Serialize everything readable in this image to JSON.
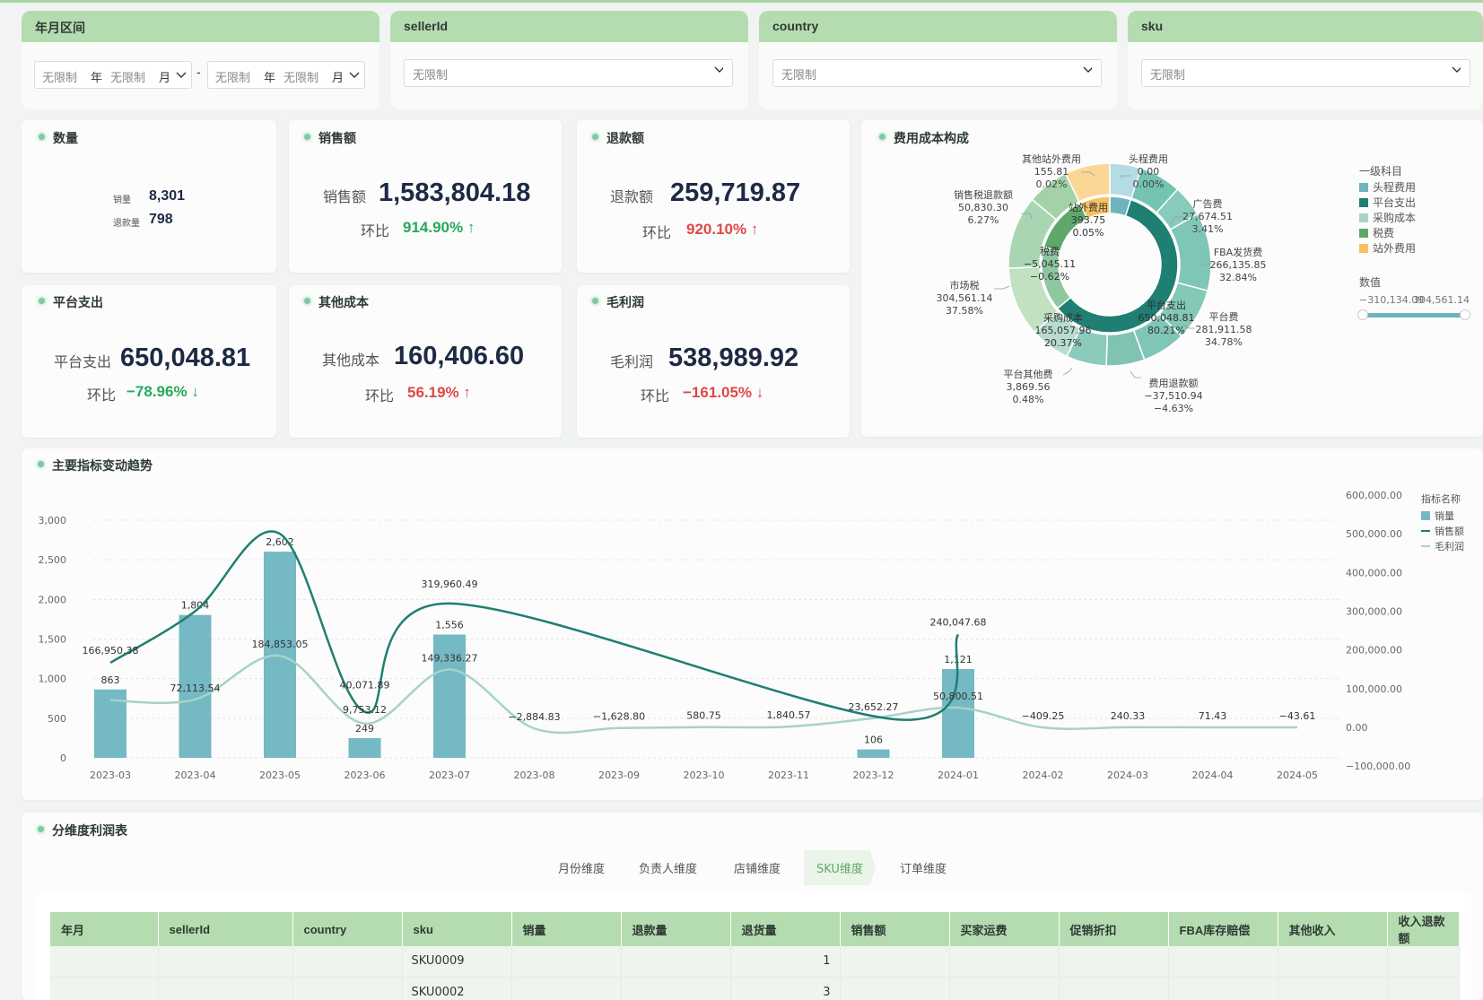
{
  "filters": {
    "year_month": {
      "title": "年月区间",
      "start_year": "无限制",
      "year_unit": "年",
      "start_month": "无限制",
      "month_unit": "月",
      "sep": "-",
      "end_year": "无限制",
      "end_month": "无限制"
    },
    "sellerId": {
      "title": "sellerId",
      "value": "无限制"
    },
    "country": {
      "title": "country",
      "value": "无限制"
    },
    "sku": {
      "title": "sku",
      "value": "无限制"
    }
  },
  "kpis": {
    "quantity": {
      "title": "数量",
      "sales_label": "销量",
      "sales_value": "8,301",
      "refund_label": "退款量",
      "refund_value": "798"
    },
    "sales": {
      "title": "销售额",
      "label": "销售额",
      "value": "1,583,804.18",
      "hb_label": "环比",
      "hb_value": "914.90%",
      "arrow": "↑"
    },
    "refund": {
      "title": "退款额",
      "label": "退款额",
      "value": "259,719.87",
      "hb_label": "环比",
      "hb_value": "920.10%",
      "arrow": "↑"
    },
    "platform": {
      "title": "平台支出",
      "label": "平台支出",
      "value": "650,048.81",
      "hb_label": "环比",
      "hb_value": "−78.96%",
      "arrow": "↓"
    },
    "other_cost": {
      "title": "其他成本",
      "label": "其他成本",
      "value": "160,406.60",
      "hb_label": "环比",
      "hb_value": "56.19%",
      "arrow": "↑"
    },
    "gross_profit": {
      "title": "毛利润",
      "label": "毛利润",
      "value": "538,989.92",
      "hb_label": "环比",
      "hb_value": "−161.05%",
      "arrow": "↓"
    }
  },
  "cost_chart": {
    "title": "费用成本构成",
    "legend_title": "一级科目",
    "legend": [
      "头程费用",
      "平台支出",
      "采购成本",
      "税费",
      "站外费用"
    ],
    "value_legend_title": "数值",
    "value_min": "−310,134.09",
    "value_max": "304,561.14",
    "colors": {
      "head": "#6fb3c0",
      "platform": "#1e7f72",
      "purchase": "#a8d4c0",
      "tax": "#5fa86a",
      "offsite": "#f6c160"
    }
  },
  "chart_data": [
    {
      "type": "pie",
      "title": "费用成本构成",
      "inner": [
        {
          "name": "头程费用",
          "value": 0.0,
          "label": ""
        },
        {
          "name": "平台支出",
          "value": 650048.81,
          "label": "平台支出\n650,048.81\n80.21%"
        },
        {
          "name": "采购成本",
          "value": 165057.96,
          "label": "采购成本\n165,057.96\n20.37%"
        },
        {
          "name": "税费",
          "value": -5045.11,
          "label": "税费\n−5,045.11\n−0.62%"
        },
        {
          "name": "站外费用",
          "value": 393.75,
          "label": "站外费用\n393.75\n0.05%"
        }
      ],
      "outer": [
        {
          "name": "头程费用",
          "value": "0.00",
          "pct": "0.00%"
        },
        {
          "name": "广告费",
          "value": "27,674.51",
          "pct": "3.41%"
        },
        {
          "name": "FBA发货费",
          "value": "266,135.85",
          "pct": "32.84%"
        },
        {
          "name": "平台费",
          "value": "281,911.58",
          "pct": "34.78%"
        },
        {
          "name": "费用退款额",
          "value": "−37,510.94",
          "pct": "−4.63%"
        },
        {
          "name": "平台其他费",
          "value": "3,869.56",
          "pct": "0.48%"
        },
        {
          "name": "市场税",
          "value": "304,561.14",
          "pct": "37.58%"
        },
        {
          "name": "销售税退款额",
          "value": "50,830.30",
          "pct": "6.27%"
        },
        {
          "name": "其他站外费用",
          "value": "155.81",
          "pct": "0.02%"
        }
      ]
    },
    {
      "type": "bar",
      "title": "主要指标变动趋势",
      "legend_title": "指标名称",
      "categories": [
        "2023-03",
        "2023-04",
        "2023-05",
        "2023-06",
        "2023-07",
        "2023-08",
        "2023-09",
        "2023-10",
        "2023-11",
        "2023-12",
        "2024-01",
        "2024-02",
        "2024-03",
        "2024-04",
        "2024-05"
      ],
      "series": [
        {
          "name": "销量",
          "type": "bar",
          "axis": "left",
          "values": [
            863,
            1804,
            2602,
            249,
            1556,
            0,
            0,
            0,
            0,
            106,
            1121,
            0,
            0,
            0,
            0
          ],
          "labels": [
            "863",
            "1,804",
            "2,602",
            "249",
            "1,556",
            "",
            "",
            "",
            "",
            "106",
            "1,121",
            "",
            "",
            "",
            ""
          ]
        },
        {
          "name": "销售额",
          "type": "line",
          "axis": "right",
          "values": [
            166950.38,
            null,
            null,
            40071.89,
            319960.49,
            null,
            null,
            null,
            null,
            null,
            240047.68,
            null,
            null,
            null,
            null
          ],
          "labels": [
            "166,950.38",
            "",
            "",
            "40,071.89",
            "319,960.49",
            "",
            "",
            "",
            "",
            "",
            "240,047.68",
            "",
            "",
            "",
            ""
          ]
        },
        {
          "name": "毛利润",
          "type": "line",
          "axis": "right",
          "values": [
            null,
            72113.54,
            184853.05,
            9753.12,
            149336.27,
            -2884.83,
            -1628.8,
            580.75,
            1840.57,
            23652.27,
            50800.51,
            -409.25,
            240.33,
            71.43,
            -43.61
          ],
          "labels": [
            "",
            "72,113.54",
            "184,853.05",
            "9,753.12",
            "149,336.27",
            "−2,884.83",
            "−1,628.80",
            "580.75",
            "1,840.57",
            "23,652.27",
            "50,800.51",
            "−409.25",
            "240.33",
            "71.43",
            "−43.61"
          ]
        }
      ],
      "left_ticks": [
        "3,000",
        "2,500",
        "2,000",
        "1,500",
        "1,000",
        "500",
        "0"
      ],
      "right_ticks": [
        "600,000.00",
        "500,000.00",
        "400,000.00",
        "300,000.00",
        "200,000.00",
        "100,000.00",
        "0.00",
        "−100,000.00"
      ],
      "ylim_left": [
        0,
        3000
      ],
      "ylim_right": [
        -100000,
        600000
      ]
    }
  ],
  "trend": {
    "title": "主要指标变动趋势",
    "legend_title": "指标名称",
    "legend": [
      "销量",
      "销售额",
      "毛利润"
    ]
  },
  "profit_table": {
    "title": "分维度利润表",
    "tabs": [
      "月份维度",
      "负责人维度",
      "店铺维度",
      "SKU维度",
      "订单维度"
    ],
    "columns": [
      "年月",
      "sellerId",
      "country",
      "sku",
      "销量",
      "退款量",
      "退货量",
      "销售额",
      "买家运费",
      "促销折扣",
      "FBA库存赔偿",
      "其他收入",
      "收入退款额"
    ],
    "rows": [
      [
        "",
        "",
        "",
        "SKU0009",
        "",
        "",
        "1",
        "",
        "",
        "",
        "",
        "",
        ""
      ],
      [
        "",
        "",
        "",
        "SKU0002",
        "",
        "",
        "3",
        "",
        "",
        "",
        "",
        "",
        ""
      ]
    ]
  }
}
